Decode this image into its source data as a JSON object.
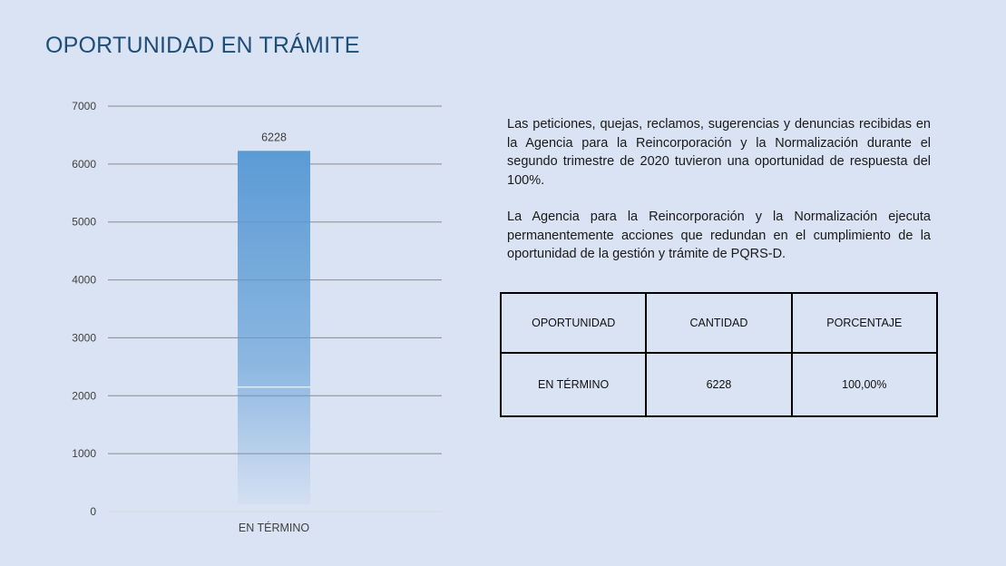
{
  "title": "OPORTUNIDAD EN TRÁMITE",
  "paragraphs": [
    "Las peticiones, quejas, reclamos, sugerencias y denuncias recibidas en la Agencia para la Reincorporación y la Normalización durante el segundo trimestre de 2020 tuvieron una oportunidad de respuesta del 100%.",
    "La Agencia para la Reincorporación y la Normalización ejecuta permanentemente acciones que redundan en el cumplimiento de la oportunidad de la gestión y trámite de PQRS-D."
  ],
  "table": {
    "headers": [
      "OPORTUNIDAD",
      "CANTIDAD",
      "PORCENTAJE"
    ],
    "rows": [
      [
        "EN TÉRMINO",
        "6228",
        "100,00%"
      ]
    ]
  },
  "chart_data": {
    "type": "bar",
    "categories": [
      "EN TÉRMINO"
    ],
    "values": [
      6228
    ],
    "data_labels": [
      "6228"
    ],
    "ylim": [
      0,
      7000
    ],
    "yticks": [
      0,
      1000,
      2000,
      3000,
      4000,
      5000,
      6000,
      7000
    ],
    "grid": true,
    "bar_color": "#5b9bd5"
  }
}
